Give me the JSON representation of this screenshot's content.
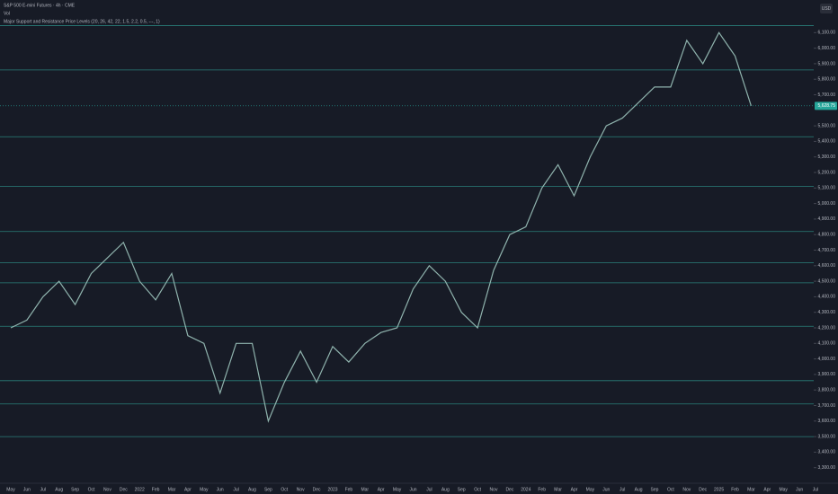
{
  "chart_data": {
    "type": "line",
    "title": "S&P 500 E-mini Futures · 4h · CME",
    "annotations": [
      "Vol",
      "Major Support and Resistance Price Levels (20, 26, 42, 22, 1.5, 2.2, 0.5, ---, 1)"
    ],
    "currency": "USD",
    "categories": [
      "May",
      "Jun",
      "Jul",
      "Aug",
      "Sep",
      "Oct",
      "Nov",
      "Dec",
      "2022",
      "Feb",
      "Mar",
      "Apr",
      "May",
      "Jun",
      "Jul",
      "Aug",
      "Sep",
      "Oct",
      "Nov",
      "Dec",
      "2023",
      "Feb",
      "Mar",
      "Apr",
      "May",
      "Jun",
      "Jul",
      "Aug",
      "Sep",
      "Oct",
      "Nov",
      "Dec",
      "2024",
      "Feb",
      "Mar",
      "Apr",
      "May",
      "Jun",
      "Jul",
      "Aug",
      "Sep",
      "Oct",
      "Nov",
      "Dec",
      "2025",
      "Feb",
      "Mar",
      "Apr",
      "May",
      "Jun",
      "Jul"
    ],
    "series": [
      {
        "name": "ES1!",
        "color": "#8fb3ad",
        "values": [
          4200,
          4250,
          4400,
          4500,
          4350,
          4550,
          4650,
          4750,
          4500,
          4380,
          4550,
          4150,
          4100,
          3780,
          4100,
          4100,
          3600,
          3850,
          4050,
          3850,
          4080,
          3980,
          4100,
          4170,
          4200,
          4450,
          4600,
          4500,
          4300,
          4200,
          4570,
          4800,
          4850,
          5100,
          5250,
          5050,
          5300,
          5500,
          5550,
          5650,
          5750,
          5750,
          6050,
          5900,
          6100,
          5950,
          5628.75,
          null,
          null,
          null,
          null
        ]
      }
    ],
    "price_label": {
      "value": 5628.75,
      "label": "5,628.75"
    },
    "levels": [
      6145,
      5860,
      5430,
      5110,
      4820,
      4620,
      4490,
      4210,
      3860,
      3710,
      3500
    ],
    "level_color": "#2a7f7a",
    "ylim": [
      3200,
      6310
    ],
    "yticks": [
      {
        "value": 3300,
        "label": "3,300.00"
      },
      {
        "value": 3400,
        "label": "3,400.00"
      },
      {
        "value": 3500,
        "label": "3,500.00"
      },
      {
        "value": 3600,
        "label": "3,600.00"
      },
      {
        "value": 3700,
        "label": "3,700.00"
      },
      {
        "value": 3800,
        "label": "3,800.00"
      },
      {
        "value": 3900,
        "label": "3,900.00"
      },
      {
        "value": 4000,
        "label": "4,000.00"
      },
      {
        "value": 4100,
        "label": "4,100.00"
      },
      {
        "value": 4200,
        "label": "4,200.00"
      },
      {
        "value": 4300,
        "label": "4,300.00"
      },
      {
        "value": 4400,
        "label": "4,400.00"
      },
      {
        "value": 4500,
        "label": "4,500.00"
      },
      {
        "value": 4600,
        "label": "4,600.00"
      },
      {
        "value": 4700,
        "label": "4,700.00"
      },
      {
        "value": 4800,
        "label": "4,800.00"
      },
      {
        "value": 4900,
        "label": "4,900.00"
      },
      {
        "value": 5000,
        "label": "5,000.00"
      },
      {
        "value": 5100,
        "label": "5,100.00"
      },
      {
        "value": 5200,
        "label": "5,200.00"
      },
      {
        "value": 5300,
        "label": "5,300.00"
      },
      {
        "value": 5400,
        "label": "5,400.00"
      },
      {
        "value": 5500,
        "label": "5,500.00"
      },
      {
        "value": 5700,
        "label": "5,700.00"
      },
      {
        "value": 5800,
        "label": "5,800.00"
      },
      {
        "value": 5900,
        "label": "5,900.00"
      },
      {
        "value": 6000,
        "label": "6,000.00"
      },
      {
        "value": 6100,
        "label": "6,100.00"
      }
    ]
  }
}
